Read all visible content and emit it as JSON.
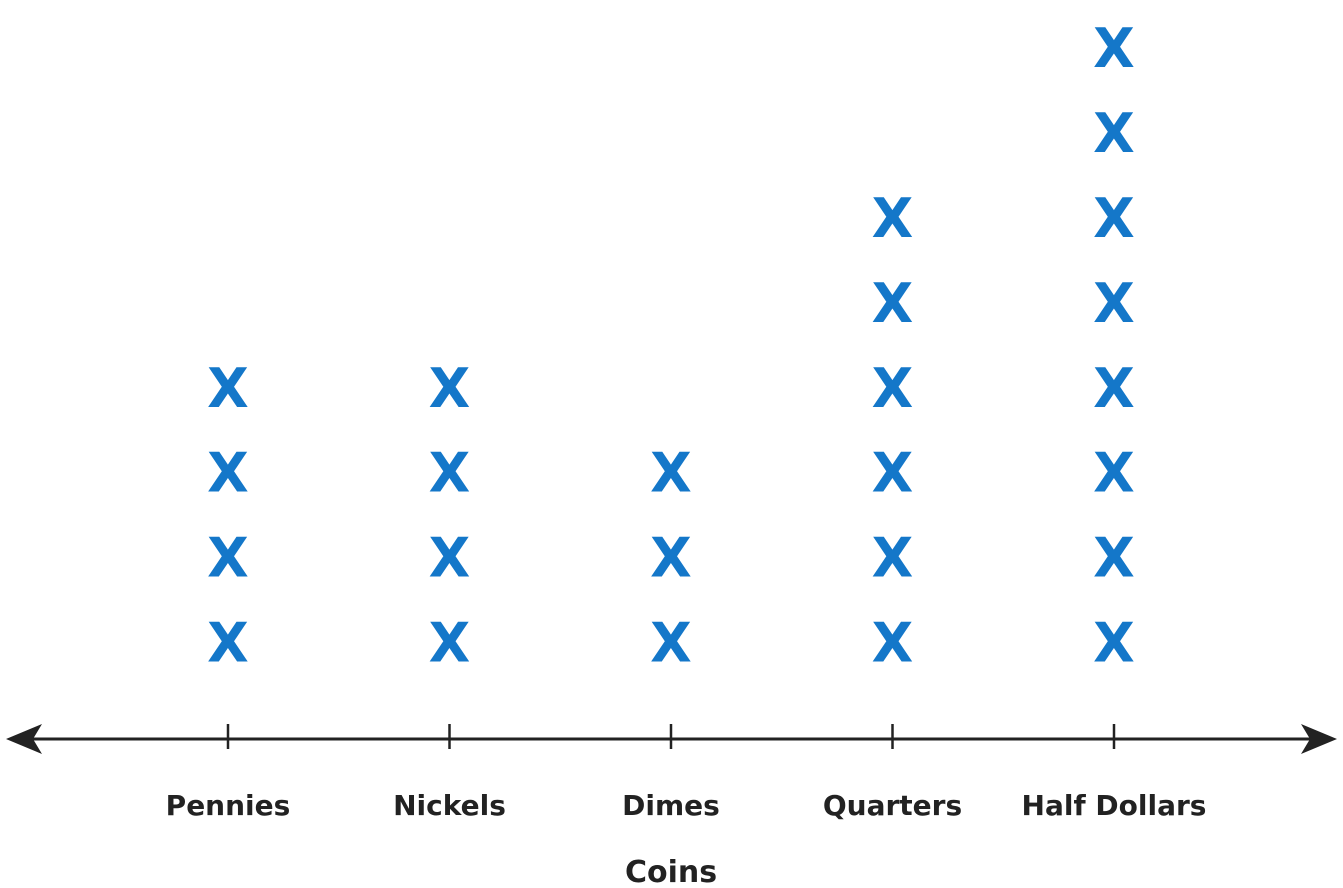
{
  "chart_data": {
    "type": "scatter",
    "subtype": "line-plot",
    "title": "",
    "xlabel": "Coins",
    "ylabel": "",
    "categories": [
      "Pennies",
      "Nickels",
      "Dimes",
      "Quarters",
      "Half Dollars"
    ],
    "values": [
      4,
      4,
      3,
      6,
      8
    ],
    "marker": "X",
    "grid": false,
    "legend": "none",
    "colors": {
      "marker": "#1477c9",
      "axis": "#222222",
      "text": "#222222"
    }
  }
}
